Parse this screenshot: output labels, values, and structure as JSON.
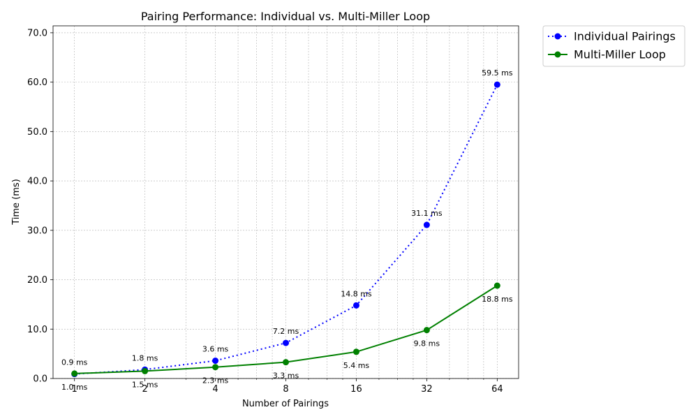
{
  "chart_data": {
    "type": "line",
    "title": "Pairing Performance: Individual vs. Multi-Miller Loop",
    "xlabel": "Number of Pairings",
    "ylabel": "Time (ms)",
    "x_scale": "log2",
    "x": [
      1,
      2,
      4,
      8,
      16,
      32,
      64
    ],
    "x_tick_labels": [
      "1",
      "2",
      "4",
      "8",
      "16",
      "32",
      "64"
    ],
    "xlim": [
      0.81,
      79
    ],
    "ylim": [
      0,
      71.4
    ],
    "y_ticks": [
      0,
      10,
      20,
      30,
      40,
      50,
      60,
      70
    ],
    "y_tick_labels": [
      "0.0",
      "10.0",
      "20.0",
      "30.0",
      "40.0",
      "50.0",
      "60.0",
      "70.0"
    ],
    "grid": true,
    "legend_position": "outside-top-right",
    "series": [
      {
        "name": "Individual Pairings",
        "color": "#0000ff",
        "line_style": "dotted",
        "marker": "circle",
        "values": [
          0.9,
          1.8,
          3.6,
          7.2,
          14.8,
          31.1,
          59.5
        ],
        "labels": [
          "0.9 ms",
          "1.8 ms",
          "3.6 ms",
          "7.2 ms",
          "14.8 ms",
          "31.1 ms",
          "59.5 ms"
        ],
        "label_position": "above"
      },
      {
        "name": "Multi-Miller Loop",
        "color": "#008000",
        "line_style": "solid",
        "marker": "circle",
        "values": [
          1.0,
          1.5,
          2.3,
          3.3,
          5.4,
          9.8,
          18.8
        ],
        "labels": [
          "1.0 ms",
          "1.5 ms",
          "2.3 ms",
          "3.3 ms",
          "5.4 ms",
          "9.8 ms",
          "18.8 ms"
        ],
        "label_position": "below"
      }
    ]
  }
}
